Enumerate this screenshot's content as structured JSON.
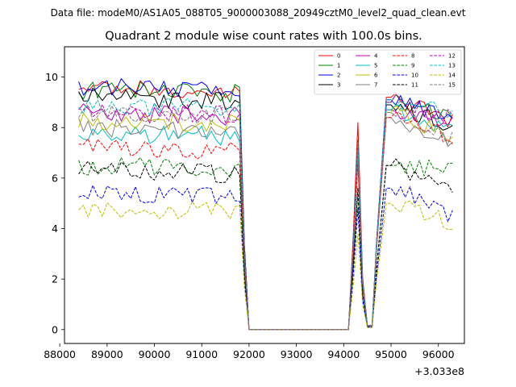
{
  "chart_data": {
    "type": "line",
    "suptitle": "Data file: modeM0/AS1A05_088T05_9000003088_20949cztM0_level2_quad_clean.evt",
    "title": "Quadrant 2 module wise count rates with 100.0s bins.",
    "xlabel": "",
    "ylabel": "",
    "x_offset_label": "+3.033e8",
    "xlim": [
      88100,
      96550
    ],
    "ylim": [
      -0.55,
      11.2
    ],
    "xticks": [
      88000,
      89000,
      90000,
      91000,
      92000,
      93000,
      94000,
      95000,
      96000
    ],
    "xtick_labels": [
      "88000",
      "89000",
      "90000",
      "91000",
      "92000",
      "93000",
      "94000",
      "95000",
      "96000"
    ],
    "yticks": [
      0,
      2,
      4,
      6,
      8,
      10
    ],
    "ytick_labels": [
      "0",
      "2",
      "4",
      "6",
      "8",
      "10"
    ],
    "legend_location": "upper-right",
    "legend_columns": 4,
    "segment_a": {
      "start": 88400,
      "step": 100,
      "count": 35
    },
    "gap": {
      "start": 92000,
      "end": 94100
    },
    "segment_b": {
      "start": 94100,
      "step": 100,
      "count": 22
    },
    "spike_shape": [
      0.45,
      1.0,
      0.25,
      0.02,
      0.02,
      0.4,
      0.7,
      1.0,
      1.0
    ],
    "series": [
      {
        "name": "0",
        "color": "#ff0000",
        "dash": "solid",
        "level_a": 9.6,
        "level_b": 9.2,
        "end_b": 8.3,
        "spike": 8.2
      },
      {
        "name": "1",
        "color": "#008000",
        "dash": "solid",
        "level_a": 9.5,
        "level_b": 9.0,
        "end_b": 8.5,
        "spike": 7.5
      },
      {
        "name": "2",
        "color": "#0000ff",
        "dash": "solid",
        "level_a": 9.6,
        "level_b": 9.1,
        "end_b": 8.4,
        "spike": 7.3
      },
      {
        "name": "3",
        "color": "#000000",
        "dash": "solid",
        "level_a": 9.2,
        "level_b": 8.9,
        "end_b": 8.0,
        "spike": 7.2
      },
      {
        "name": "4",
        "color": "#bf00bf",
        "dash": "solid",
        "level_a": 8.6,
        "level_b": 8.7,
        "end_b": 8.2,
        "spike": 7.0
      },
      {
        "name": "5",
        "color": "#00bfbf",
        "dash": "solid",
        "level_a": 7.8,
        "level_b": 8.7,
        "end_b": 7.8,
        "spike": 6.9
      },
      {
        "name": "6",
        "color": "#bfbf00",
        "dash": "solid",
        "level_a": 8.3,
        "level_b": 8.6,
        "end_b": 7.6,
        "spike": 6.8
      },
      {
        "name": "7",
        "color": "#808080",
        "dash": "solid",
        "level_a": 8.0,
        "level_b": 8.4,
        "end_b": 7.3,
        "spike": 6.7
      },
      {
        "name": "8",
        "color": "#ff0000",
        "dash": "dashed",
        "level_a": 7.2,
        "level_b": 8.4,
        "end_b": 7.6,
        "spike": 6.6
      },
      {
        "name": "9",
        "color": "#008000",
        "dash": "dashed",
        "level_a": 6.5,
        "level_b": 6.5,
        "end_b": 6.3,
        "spike": 5.4
      },
      {
        "name": "10",
        "color": "#0000ff",
        "dash": "dashed",
        "level_a": 5.4,
        "level_b": 5.6,
        "end_b": 4.5,
        "spike": 4.8
      },
      {
        "name": "11",
        "color": "#000000",
        "dash": "dashed",
        "level_a": 6.3,
        "level_b": 6.5,
        "end_b": 5.5,
        "spike": 5.6
      },
      {
        "name": "12",
        "color": "#bf00bf",
        "dash": "dashed",
        "level_a": 8.7,
        "level_b": 9.0,
        "end_b": 8.4,
        "spike": 7.3
      },
      {
        "name": "13",
        "color": "#00bfbf",
        "dash": "dashed",
        "level_a": 8.9,
        "level_b": 9.1,
        "end_b": 8.6,
        "spike": 7.4
      },
      {
        "name": "14",
        "color": "#bfbf00",
        "dash": "dashed",
        "level_a": 4.8,
        "level_b": 5.0,
        "end_b": 4.2,
        "spike": 3.8
      },
      {
        "name": "15",
        "color": "#808080",
        "dash": "dashed",
        "level_a": 8.6,
        "level_b": 8.6,
        "end_b": 7.6,
        "spike": 7.1
      }
    ]
  }
}
